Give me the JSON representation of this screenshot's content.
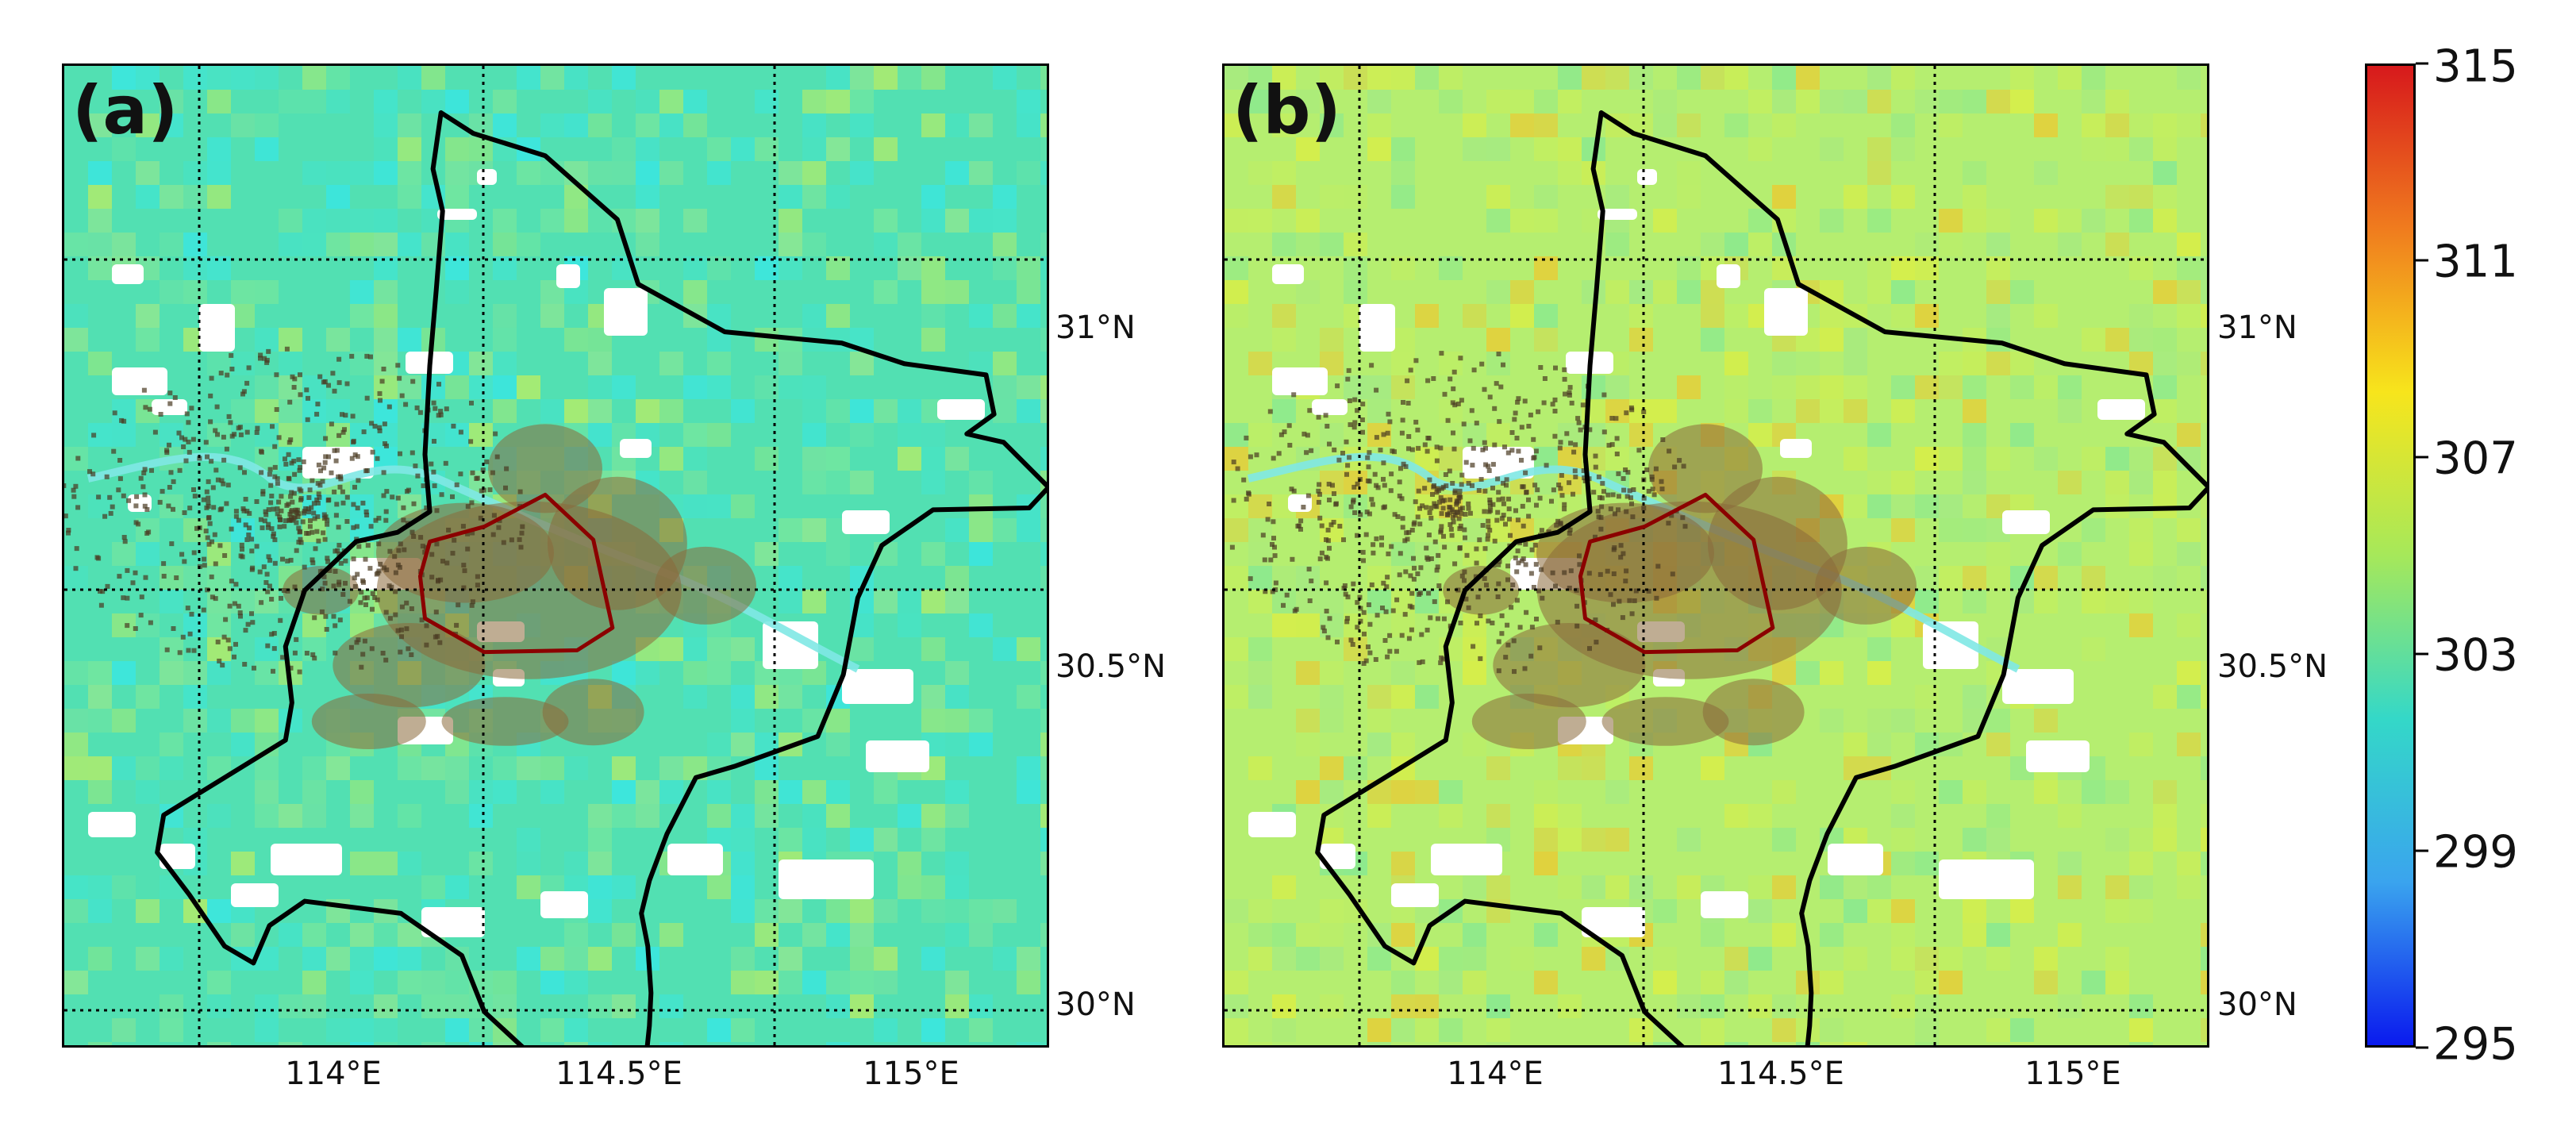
{
  "panels": [
    {
      "label": "(a)",
      "background_color": "#52e0b2",
      "variation_colors": [
        "#3fe6d6",
        "#34e8ee",
        "#7de89a",
        "#9ee98a",
        "#c8ef5a"
      ],
      "water_color": "#ffffff",
      "urban_color": "#8a6a3a",
      "core_boundary_color": "#8b0000",
      "boundary_color": "#000000"
    },
    {
      "label": "(b)",
      "background_color": "#b5ee70",
      "variation_colors": [
        "#9ee98a",
        "#c8ef5a",
        "#e2ee3c",
        "#f2c62a",
        "#7de89a"
      ],
      "water_color": "#ffffff",
      "urban_color": "#8a6a3a",
      "core_boundary_color": "#8b0000",
      "boundary_color": "#000000"
    }
  ],
  "axes": {
    "lon_ticks": [
      "114°E",
      "114.5°E",
      "115°E"
    ],
    "lat_ticks": [
      "31°N",
      "30.5°N",
      "30°N"
    ]
  },
  "colorbar": {
    "ticks": [
      "315",
      "311",
      "307",
      "303",
      "299",
      "295"
    ],
    "min": 295,
    "max": 315,
    "colors": [
      "#d7191c",
      "#f07c1e",
      "#f7e51c",
      "#a6e85a",
      "#34d8c8",
      "#3aa4ee",
      "#0a1aee"
    ]
  }
}
